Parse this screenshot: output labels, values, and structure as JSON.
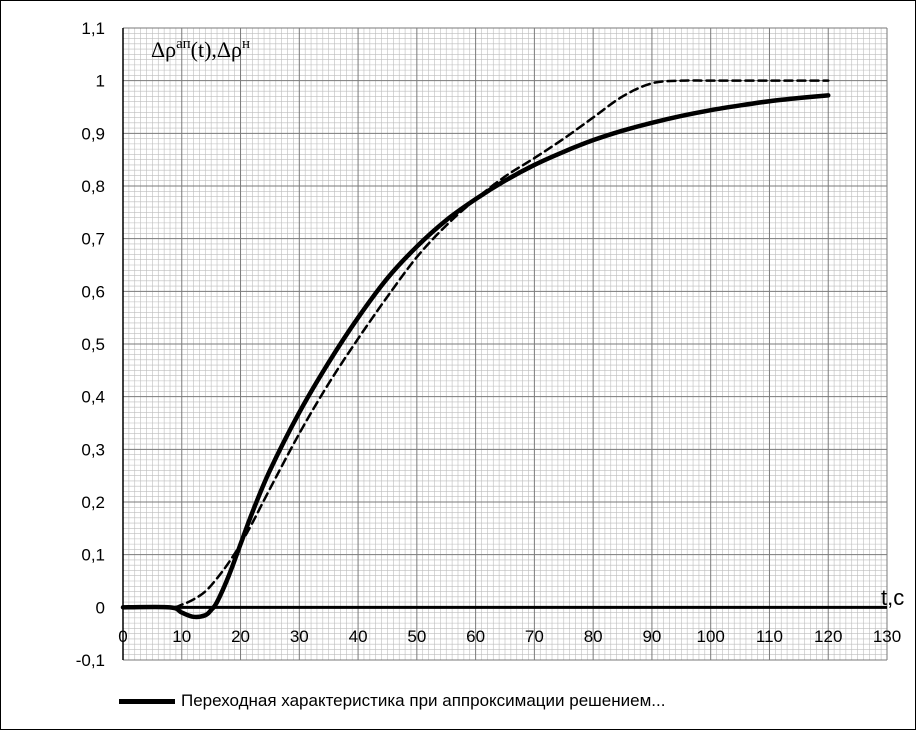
{
  "chart_data": {
    "type": "line",
    "y_title": {
      "base1": "Δρ",
      "sup1": "ап",
      "mid": "(t),Δρ",
      "sup2": "н"
    },
    "xlabel": "t,c",
    "xlim": [
      0,
      130
    ],
    "ylim": [
      -0.1,
      1.1
    ],
    "x_ticks": [
      "0",
      "10",
      "20",
      "30",
      "40",
      "50",
      "60",
      "70",
      "80",
      "90",
      "100",
      "110",
      "120",
      "130"
    ],
    "y_ticks": [
      "-0,1",
      "0",
      "0,1",
      "0,2",
      "0,3",
      "0,4",
      "0,5",
      "0,6",
      "0,7",
      "0,8",
      "0,9",
      "1",
      "1,1"
    ],
    "grid": true,
    "legend_position": "bottom-left",
    "series": [
      {
        "name": "Переходная характеристика при аппроксимации решением...",
        "style": "solid",
        "color": "#000000",
        "x": [
          0,
          8,
          10,
          12,
          14,
          15,
          16,
          18,
          20,
          22,
          25,
          30,
          35,
          40,
          45,
          50,
          55,
          60,
          65,
          70,
          75,
          80,
          85,
          90,
          95,
          100,
          105,
          110,
          115,
          120
        ],
        "y": [
          0,
          0,
          -0.01,
          -0.018,
          -0.015,
          -0.005,
          0.01,
          0.06,
          0.12,
          0.18,
          0.26,
          0.37,
          0.465,
          0.55,
          0.625,
          0.685,
          0.735,
          0.775,
          0.81,
          0.84,
          0.865,
          0.887,
          0.905,
          0.92,
          0.933,
          0.944,
          0.953,
          0.961,
          0.967,
          0.972
        ]
      },
      {
        "style": "dashed",
        "color": "#000000",
        "x": [
          0,
          8,
          10,
          12,
          14,
          16,
          18,
          20,
          22,
          25,
          30,
          35,
          40,
          45,
          50,
          55,
          60,
          65,
          70,
          75,
          80,
          85,
          90,
          95,
          100,
          105,
          110,
          115,
          120
        ],
        "y": [
          0,
          0,
          0.005,
          0.015,
          0.03,
          0.055,
          0.085,
          0.12,
          0.16,
          0.225,
          0.33,
          0.425,
          0.51,
          0.59,
          0.665,
          0.725,
          0.775,
          0.818,
          0.853,
          0.89,
          0.93,
          0.97,
          0.995,
          1.0,
          1.0,
          1.0,
          1.0,
          1.0,
          1.0
        ]
      }
    ]
  }
}
